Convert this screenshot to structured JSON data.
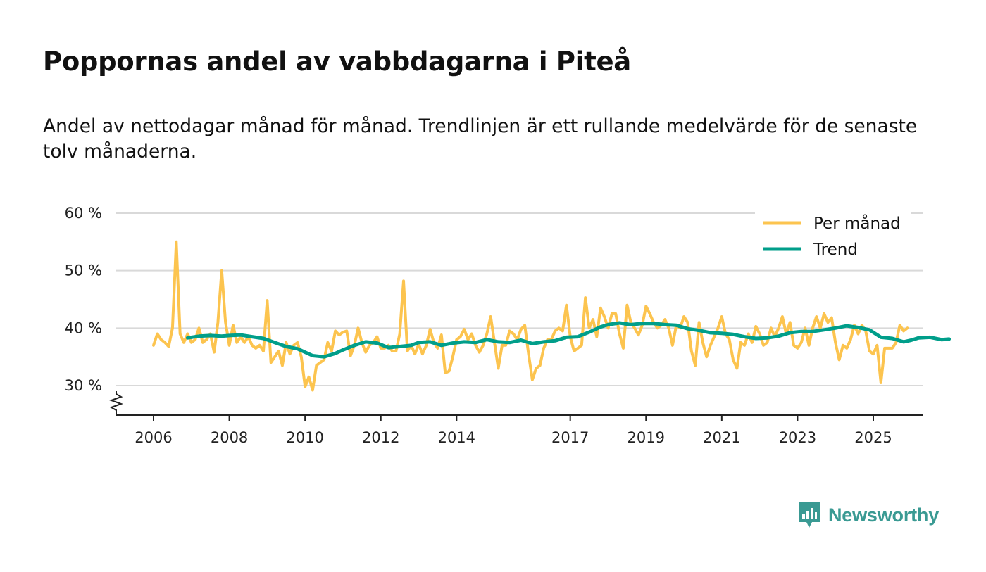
{
  "header": {
    "title": "Poppornas andel av vabbdagarna i Piteå",
    "subtitle": "Andel av nettodagar månad för månad. Trendlinjen är ett rullande medelvärde för de senaste tolv månaderna."
  },
  "brand": {
    "name": "Newsworthy",
    "icon": "newsworthy-logo-icon",
    "color": "#3a9a93"
  },
  "chart_data": {
    "type": "line",
    "title": "Poppornas andel av vabbdagarna i Piteå",
    "xlabel": "",
    "ylabel": "",
    "ylim": [
      25,
      60
    ],
    "xlim": [
      2005.5,
      2026.2
    ],
    "y_ticks": [
      {
        "value": 30,
        "label": "30 %"
      },
      {
        "value": 40,
        "label": "40 %"
      },
      {
        "value": 50,
        "label": "50 %"
      },
      {
        "value": 60,
        "label": "60 %"
      }
    ],
    "x_ticks": [
      {
        "value": 2006,
        "label": "2006"
      },
      {
        "value": 2008,
        "label": "2008"
      },
      {
        "value": 2010,
        "label": "2010"
      },
      {
        "value": 2012,
        "label": "2012"
      },
      {
        "value": 2014,
        "label": "2014"
      },
      {
        "value": 2017,
        "label": "2017"
      },
      {
        "value": 2019,
        "label": "2019"
      },
      {
        "value": 2021,
        "label": "2021"
      },
      {
        "value": 2023,
        "label": "2023"
      },
      {
        "value": 2025,
        "label": "2025"
      }
    ],
    "grid": true,
    "legend_position": "top-right",
    "series": [
      {
        "name": "Per månad",
        "color": "#fcc44f",
        "points": [
          [
            2006.0,
            37
          ],
          [
            2006.1,
            39
          ],
          [
            2006.2,
            38
          ],
          [
            2006.3,
            37.5
          ],
          [
            2006.4,
            36.8
          ],
          [
            2006.5,
            40
          ],
          [
            2006.6,
            55
          ],
          [
            2006.7,
            39
          ],
          [
            2006.8,
            37.5
          ],
          [
            2006.9,
            39
          ],
          [
            2007.0,
            37.5
          ],
          [
            2007.1,
            38
          ],
          [
            2007.2,
            40
          ],
          [
            2007.3,
            37.5
          ],
          [
            2007.4,
            38
          ],
          [
            2007.5,
            39
          ],
          [
            2007.6,
            35.8
          ],
          [
            2007.7,
            41
          ],
          [
            2007.8,
            50
          ],
          [
            2007.9,
            41
          ],
          [
            2008.0,
            37
          ],
          [
            2008.1,
            40.5
          ],
          [
            2008.2,
            37.5
          ],
          [
            2008.3,
            38.5
          ],
          [
            2008.4,
            37.5
          ],
          [
            2008.5,
            38.5
          ],
          [
            2008.6,
            37
          ],
          [
            2008.7,
            36.5
          ],
          [
            2008.8,
            37
          ],
          [
            2008.9,
            36
          ],
          [
            2009.0,
            44.8
          ],
          [
            2009.1,
            34
          ],
          [
            2009.2,
            35
          ],
          [
            2009.3,
            36
          ],
          [
            2009.4,
            33.5
          ],
          [
            2009.5,
            37.5
          ],
          [
            2009.6,
            35.5
          ],
          [
            2009.7,
            37
          ],
          [
            2009.8,
            37.5
          ],
          [
            2009.9,
            35
          ],
          [
            2010.0,
            29.8
          ],
          [
            2010.1,
            31.5
          ],
          [
            2010.2,
            29.2
          ],
          [
            2010.3,
            33.5
          ],
          [
            2010.4,
            34
          ],
          [
            2010.5,
            34.5
          ],
          [
            2010.6,
            37.5
          ],
          [
            2010.7,
            36
          ],
          [
            2010.8,
            39.5
          ],
          [
            2010.9,
            38.8
          ],
          [
            2011.0,
            39.3
          ],
          [
            2011.1,
            39.5
          ],
          [
            2011.2,
            35.2
          ],
          [
            2011.3,
            37
          ],
          [
            2011.4,
            40
          ],
          [
            2011.5,
            37.5
          ],
          [
            2011.6,
            35.8
          ],
          [
            2011.7,
            37
          ],
          [
            2011.8,
            37.5
          ],
          [
            2011.9,
            38.5
          ],
          [
            2012.0,
            36.5
          ],
          [
            2012.1,
            36.5
          ],
          [
            2012.2,
            37
          ],
          [
            2012.3,
            36
          ],
          [
            2012.4,
            36
          ],
          [
            2012.5,
            39
          ],
          [
            2012.6,
            48.2
          ],
          [
            2012.7,
            36
          ],
          [
            2012.8,
            37
          ],
          [
            2012.9,
            35.5
          ],
          [
            2013.0,
            37.2
          ],
          [
            2013.1,
            35.5
          ],
          [
            2013.2,
            37
          ],
          [
            2013.3,
            39.8
          ],
          [
            2013.4,
            37.5
          ],
          [
            2013.5,
            36.5
          ],
          [
            2013.6,
            38.8
          ],
          [
            2013.7,
            32.2
          ],
          [
            2013.8,
            32.5
          ],
          [
            2013.9,
            35
          ],
          [
            2014.0,
            38
          ],
          [
            2014.1,
            38.5
          ],
          [
            2014.2,
            39.8
          ],
          [
            2014.3,
            38
          ],
          [
            2014.4,
            39
          ],
          [
            2014.5,
            37
          ],
          [
            2014.6,
            35.8
          ],
          [
            2014.7,
            37
          ],
          [
            2014.8,
            39
          ],
          [
            2014.9,
            42
          ],
          [
            2015.0,
            37.5
          ],
          [
            2015.1,
            33
          ],
          [
            2015.2,
            37
          ],
          [
            2015.3,
            37
          ],
          [
            2015.4,
            39.5
          ],
          [
            2015.5,
            39
          ],
          [
            2015.6,
            38
          ],
          [
            2015.7,
            39.8
          ],
          [
            2015.8,
            40.5
          ],
          [
            2015.9,
            35.5
          ],
          [
            2016.0,
            31
          ],
          [
            2016.1,
            33
          ],
          [
            2016.2,
            33.5
          ],
          [
            2016.3,
            36.5
          ],
          [
            2016.4,
            38
          ],
          [
            2016.5,
            38
          ],
          [
            2016.6,
            39.5
          ],
          [
            2016.7,
            40
          ],
          [
            2016.8,
            39.5
          ],
          [
            2016.9,
            44
          ],
          [
            2017.0,
            38.5
          ],
          [
            2017.1,
            36
          ],
          [
            2017.2,
            36.5
          ],
          [
            2017.3,
            37
          ],
          [
            2017.4,
            45.3
          ],
          [
            2017.5,
            40
          ],
          [
            2017.6,
            41.5
          ],
          [
            2017.7,
            38.5
          ],
          [
            2017.8,
            43.5
          ],
          [
            2017.9,
            42
          ],
          [
            2018.0,
            40
          ],
          [
            2018.1,
            42.5
          ],
          [
            2018.2,
            42.5
          ],
          [
            2018.3,
            39
          ],
          [
            2018.4,
            36.5
          ],
          [
            2018.5,
            44
          ],
          [
            2018.6,
            41
          ],
          [
            2018.7,
            40
          ],
          [
            2018.8,
            38.8
          ],
          [
            2018.9,
            40.5
          ],
          [
            2019.0,
            43.8
          ],
          [
            2019.1,
            42.5
          ],
          [
            2019.2,
            41
          ],
          [
            2019.3,
            40
          ],
          [
            2019.4,
            40.5
          ],
          [
            2019.5,
            41.5
          ],
          [
            2019.6,
            40
          ],
          [
            2019.7,
            37
          ],
          [
            2019.8,
            40.5
          ],
          [
            2019.9,
            40
          ],
          [
            2020.0,
            42
          ],
          [
            2020.1,
            41
          ],
          [
            2020.2,
            36
          ],
          [
            2020.3,
            33.5
          ],
          [
            2020.4,
            41
          ],
          [
            2020.5,
            37.5
          ],
          [
            2020.6,
            35
          ],
          [
            2020.7,
            37
          ],
          [
            2020.8,
            38.5
          ],
          [
            2020.9,
            40
          ],
          [
            2021.0,
            42
          ],
          [
            2021.1,
            39
          ],
          [
            2021.2,
            38
          ],
          [
            2021.3,
            34.5
          ],
          [
            2021.4,
            33
          ],
          [
            2021.5,
            37.5
          ],
          [
            2021.6,
            37
          ],
          [
            2021.7,
            39
          ],
          [
            2021.8,
            37.5
          ],
          [
            2021.9,
            40.3
          ],
          [
            2022.0,
            39
          ],
          [
            2022.1,
            37
          ],
          [
            2022.2,
            37.5
          ],
          [
            2022.3,
            40
          ],
          [
            2022.4,
            38.5
          ],
          [
            2022.5,
            40
          ],
          [
            2022.6,
            42
          ],
          [
            2022.7,
            39
          ],
          [
            2022.8,
            41
          ],
          [
            2022.9,
            37
          ],
          [
            2023.0,
            36.5
          ],
          [
            2023.1,
            37.5
          ],
          [
            2023.2,
            40
          ],
          [
            2023.3,
            37
          ],
          [
            2023.4,
            40
          ],
          [
            2023.5,
            42
          ],
          [
            2023.6,
            40
          ],
          [
            2023.7,
            42.5
          ],
          [
            2023.8,
            41
          ],
          [
            2023.9,
            41.8
          ],
          [
            2024.0,
            37.5
          ],
          [
            2024.1,
            34.5
          ],
          [
            2024.2,
            37
          ],
          [
            2024.3,
            36.5
          ],
          [
            2024.4,
            38
          ],
          [
            2024.5,
            40.5
          ],
          [
            2024.6,
            39
          ],
          [
            2024.7,
            40.5
          ],
          [
            2024.8,
            39.5
          ],
          [
            2024.9,
            36
          ],
          [
            2025.0,
            35.5
          ],
          [
            2025.1,
            37
          ],
          [
            2025.2,
            30.5
          ],
          [
            2025.3,
            36.5
          ],
          [
            2025.4,
            36.5
          ],
          [
            2025.5,
            36.5
          ],
          [
            2025.6,
            37.5
          ],
          [
            2025.7,
            40.5
          ],
          [
            2025.8,
            39.5
          ],
          [
            2025.9,
            40
          ]
        ]
      },
      {
        "name": "Trend",
        "color": "#009e8a",
        "points": [
          [
            2006.9,
            38.3
          ],
          [
            2007.2,
            38.6
          ],
          [
            2007.5,
            38.7
          ],
          [
            2007.8,
            38.6
          ],
          [
            2008.0,
            38.7
          ],
          [
            2008.3,
            38.8
          ],
          [
            2008.6,
            38.5
          ],
          [
            2008.9,
            38.2
          ],
          [
            2009.2,
            37.5
          ],
          [
            2009.5,
            36.8
          ],
          [
            2009.8,
            36.4
          ],
          [
            2010.0,
            35.8
          ],
          [
            2010.2,
            35.2
          ],
          [
            2010.5,
            35.0
          ],
          [
            2010.8,
            35.6
          ],
          [
            2011.0,
            36.2
          ],
          [
            2011.3,
            37.0
          ],
          [
            2011.6,
            37.6
          ],
          [
            2011.9,
            37.4
          ],
          [
            2012.2,
            36.6
          ],
          [
            2012.5,
            36.8
          ],
          [
            2012.8,
            37.0
          ],
          [
            2013.0,
            37.5
          ],
          [
            2013.3,
            37.6
          ],
          [
            2013.6,
            37.0
          ],
          [
            2013.9,
            37.4
          ],
          [
            2014.2,
            37.6
          ],
          [
            2014.5,
            37.5
          ],
          [
            2014.8,
            38.0
          ],
          [
            2015.1,
            37.6
          ],
          [
            2015.4,
            37.5
          ],
          [
            2015.7,
            37.9
          ],
          [
            2016.0,
            37.3
          ],
          [
            2016.3,
            37.6
          ],
          [
            2016.6,
            37.8
          ],
          [
            2016.9,
            38.4
          ],
          [
            2017.2,
            38.5
          ],
          [
            2017.5,
            39.3
          ],
          [
            2017.8,
            40.2
          ],
          [
            2018.0,
            40.6
          ],
          [
            2018.3,
            40.9
          ],
          [
            2018.6,
            40.6
          ],
          [
            2018.9,
            40.8
          ],
          [
            2019.2,
            40.8
          ],
          [
            2019.5,
            40.6
          ],
          [
            2019.8,
            40.5
          ],
          [
            2020.1,
            39.9
          ],
          [
            2020.4,
            39.6
          ],
          [
            2020.7,
            39.2
          ],
          [
            2021.0,
            39.1
          ],
          [
            2021.3,
            38.9
          ],
          [
            2021.6,
            38.5
          ],
          [
            2021.9,
            38.2
          ],
          [
            2022.2,
            38.3
          ],
          [
            2022.5,
            38.6
          ],
          [
            2022.8,
            39.2
          ],
          [
            2023.1,
            39.4
          ],
          [
            2023.4,
            39.4
          ],
          [
            2023.7,
            39.7
          ],
          [
            2024.0,
            40.0
          ],
          [
            2024.3,
            40.4
          ],
          [
            2024.6,
            40.1
          ],
          [
            2024.9,
            39.7
          ],
          [
            2025.2,
            38.4
          ],
          [
            2025.5,
            38.2
          ],
          [
            2025.8,
            37.6
          ],
          [
            2026.0,
            37.9
          ],
          [
            2026.2,
            38.3
          ],
          [
            2026.5,
            38.4
          ],
          [
            2026.8,
            38.0
          ],
          [
            2027.0,
            38.1
          ]
        ]
      }
    ]
  }
}
